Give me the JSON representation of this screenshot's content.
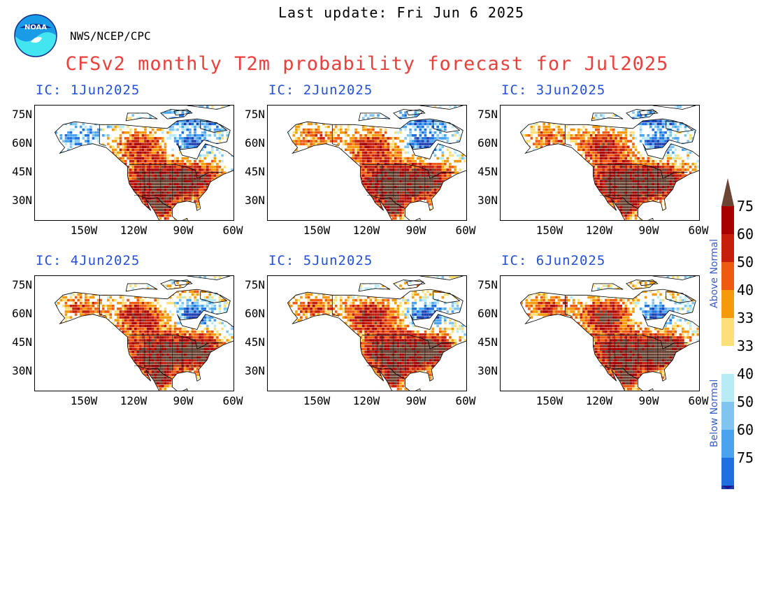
{
  "header": {
    "last_update": "Last update: Fri Jun  6 2025",
    "org": "NWS/NCEP/CPC",
    "logo_text": "NOAA",
    "title": "CFSv2 monthly T2m probability forecast for Jul2025"
  },
  "colors": {
    "title": "#e8413c",
    "ic_label": "#2550d8",
    "colorbar_side_label": "#3a5cc8",
    "above": [
      "#fbe07a",
      "#f59a0a",
      "#ee5a0f",
      "#c51e0a",
      "#a80000",
      "#6b4434"
    ],
    "below": [
      "#b7ecf5",
      "#80c5f0",
      "#4aa3ef",
      "#1e6fe0",
      "#1f3fb0",
      "#1c1890"
    ]
  },
  "map_frame": {
    "lon_range": [
      -180,
      -60
    ],
    "lat_range": [
      20,
      80
    ],
    "lat_ticks": [
      "75N",
      "60N",
      "45N",
      "30N"
    ],
    "lon_ticks": [
      "150W",
      "120W",
      "90W",
      "60W"
    ]
  },
  "panels": [
    {
      "ic": "IC: 1Jun2025",
      "variant": 1
    },
    {
      "ic": "IC: 2Jun2025",
      "variant": 2
    },
    {
      "ic": "IC: 3Jun2025",
      "variant": 3
    },
    {
      "ic": "IC: 4Jun2025",
      "variant": 4
    },
    {
      "ic": "IC: 5Jun2025",
      "variant": 5
    },
    {
      "ic": "IC: 6Jun2025",
      "variant": 6
    }
  ],
  "colorbar": {
    "above_label": "Above Normal",
    "below_label": "Below Normal",
    "labels": [
      "75",
      "60",
      "50",
      "40",
      "33",
      "33",
      "40",
      "50",
      "60",
      "75"
    ]
  }
}
